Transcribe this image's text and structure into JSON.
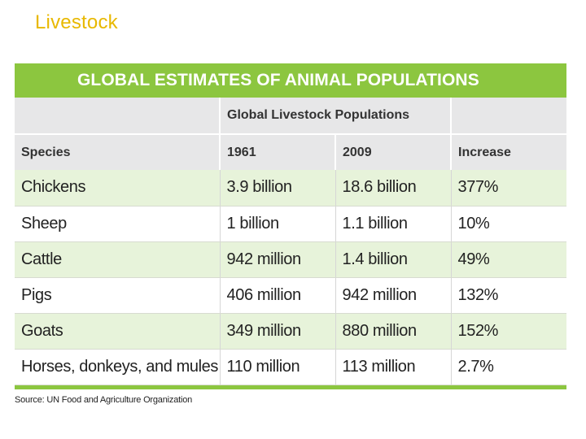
{
  "slide_title": "Livestock",
  "table": {
    "banner_title": "GLOBAL ESTIMATES OF ANIMAL POPULATIONS",
    "group_header": "Global Livestock Populations",
    "columns": {
      "species": "Species",
      "y1961": "1961",
      "y2009": "2009",
      "increase": "Increase"
    },
    "rows": [
      {
        "species": "Chickens",
        "y1961": "3.9 billion",
        "y2009": "18.6 billion",
        "increase": "377%"
      },
      {
        "species": "Sheep",
        "y1961": "1 billion",
        "y2009": "1.1 billion",
        "increase": "10%"
      },
      {
        "species": "Cattle",
        "y1961": "942 million",
        "y2009": "1.4 billion",
        "increase": "49%"
      },
      {
        "species": "Pigs",
        "y1961": "406 million",
        "y2009": "942 million",
        "increase": "132%"
      },
      {
        "species": "Goats",
        "y1961": "349 million",
        "y2009": "880 million",
        "increase": "152%"
      },
      {
        "species": "Horses, donkeys, and mules",
        "y1961": "110 million",
        "y2009": "113 million",
        "increase": "2.7%"
      }
    ],
    "source": "Source: UN Food and Agriculture Organization"
  },
  "colors": {
    "title": "#e8b800",
    "banner": "#8cc63f",
    "header_gray": "#e7e7e8",
    "row_shade": "#e7f3da"
  }
}
